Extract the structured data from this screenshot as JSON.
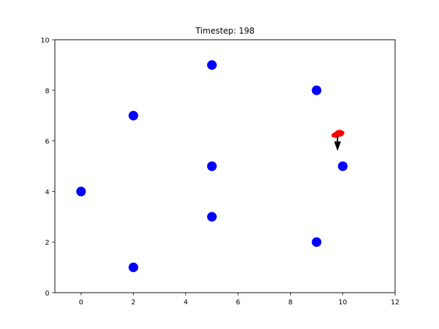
{
  "chart_data": {
    "type": "scatter",
    "title": "Timestep: 198",
    "xlabel": "",
    "ylabel": "",
    "xlim": [
      -1,
      12
    ],
    "ylim": [
      0,
      10
    ],
    "xticks": [
      0,
      2,
      4,
      6,
      8,
      10,
      12
    ],
    "yticks": [
      0,
      2,
      4,
      6,
      8,
      10
    ],
    "grid": false,
    "series": [
      {
        "color": "#0000ff",
        "marker": "circle",
        "points": [
          {
            "x": 0,
            "y": 4
          },
          {
            "x": 2,
            "y": 1
          },
          {
            "x": 2,
            "y": 7
          },
          {
            "x": 5,
            "y": 3
          },
          {
            "x": 5,
            "y": 5
          },
          {
            "x": 5,
            "y": 9
          },
          {
            "x": 9,
            "y": 2
          },
          {
            "x": 9,
            "y": 8
          },
          {
            "x": 10,
            "y": 5
          }
        ]
      },
      {
        "color": "#ff0000",
        "marker": "trail",
        "points": [
          {
            "x": 9.65,
            "y": 6.22
          },
          {
            "x": 9.72,
            "y": 6.26
          },
          {
            "x": 9.78,
            "y": 6.3
          },
          {
            "x": 9.85,
            "y": 6.32
          },
          {
            "x": 9.92,
            "y": 6.33
          },
          {
            "x": 9.98,
            "y": 6.32
          },
          {
            "x": 9.95,
            "y": 6.27
          },
          {
            "x": 9.88,
            "y": 6.25
          },
          {
            "x": 9.8,
            "y": 6.22
          },
          {
            "x": 9.72,
            "y": 6.2
          },
          {
            "x": 9.68,
            "y": 6.24
          },
          {
            "x": 9.75,
            "y": 6.29
          },
          {
            "x": 9.82,
            "y": 6.35
          },
          {
            "x": 9.9,
            "y": 6.36
          },
          {
            "x": 9.96,
            "y": 6.3
          }
        ]
      }
    ],
    "arrow": {
      "color": "#000000",
      "x": 9.8,
      "y": 6.2,
      "dx": 0.0,
      "dy": -0.6
    }
  }
}
